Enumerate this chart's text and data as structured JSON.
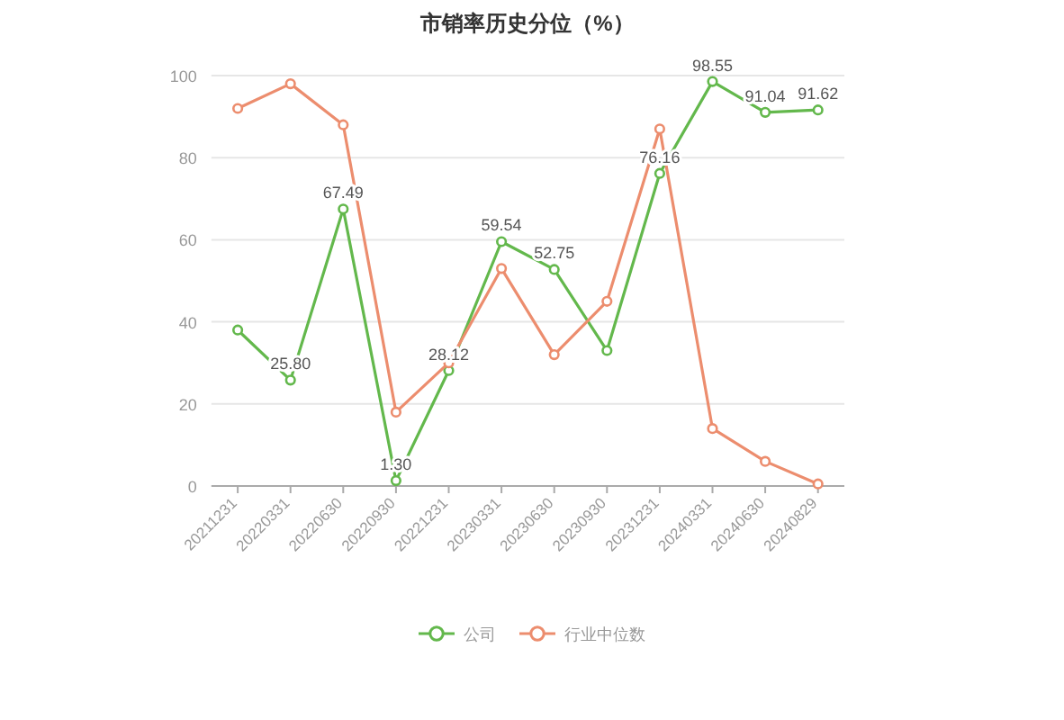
{
  "chart_data": {
    "type": "line",
    "title": "市销率历史分位（%）",
    "categories": [
      "20211231",
      "20220331",
      "20220630",
      "20220930",
      "20221231",
      "20230331",
      "20230630",
      "20230930",
      "20231231",
      "20240331",
      "20240630",
      "20240829"
    ],
    "series": [
      {
        "name": "公司",
        "color": "#63b84c",
        "values": [
          38,
          25.8,
          67.49,
          1.3,
          28.12,
          59.54,
          52.75,
          33,
          76.16,
          98.55,
          91.04,
          91.62
        ],
        "value_labels": [
          null,
          "25.80",
          "67.49",
          "1.30",
          "28.12",
          "59.54",
          "52.75",
          null,
          "76.16",
          "98.55",
          "91.04",
          "91.62"
        ]
      },
      {
        "name": "行业中位数",
        "color": "#ec8d6e",
        "values": [
          92,
          98,
          88,
          18,
          30,
          53,
          32,
          45,
          87,
          14,
          6,
          0.5
        ]
      }
    ],
    "ylim": [
      0,
      100
    ],
    "yticks": [
      0,
      20,
      40,
      60,
      80,
      100
    ],
    "grid": "y",
    "legend": "bottom",
    "marker": "circle"
  }
}
